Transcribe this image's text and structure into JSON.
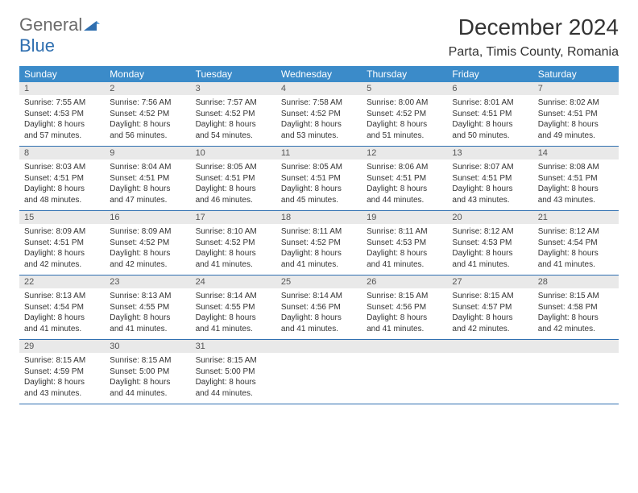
{
  "brand": {
    "part1": "General",
    "part2": "Blue"
  },
  "title": "December 2024",
  "location": "Parta, Timis County, Romania",
  "colors": {
    "header_bg": "#3b8bc9",
    "header_text": "#ffffff",
    "daynum_bg": "#e9e9e9",
    "row_border": "#2f6fb0",
    "logo_gray": "#6b6b6b",
    "logo_blue": "#2f6fb0",
    "text": "#333333",
    "page_bg": "#ffffff"
  },
  "typography": {
    "title_fontsize": 28,
    "location_fontsize": 16,
    "weekday_fontsize": 12,
    "daynum_fontsize": 11,
    "body_fontsize": 10
  },
  "weekdays": [
    "Sunday",
    "Monday",
    "Tuesday",
    "Wednesday",
    "Thursday",
    "Friday",
    "Saturday"
  ],
  "days": [
    {
      "n": "1",
      "sunrise": "7:55 AM",
      "sunset": "4:53 PM",
      "daylight": "8 hours and 57 minutes."
    },
    {
      "n": "2",
      "sunrise": "7:56 AM",
      "sunset": "4:52 PM",
      "daylight": "8 hours and 56 minutes."
    },
    {
      "n": "3",
      "sunrise": "7:57 AM",
      "sunset": "4:52 PM",
      "daylight": "8 hours and 54 minutes."
    },
    {
      "n": "4",
      "sunrise": "7:58 AM",
      "sunset": "4:52 PM",
      "daylight": "8 hours and 53 minutes."
    },
    {
      "n": "5",
      "sunrise": "8:00 AM",
      "sunset": "4:52 PM",
      "daylight": "8 hours and 51 minutes."
    },
    {
      "n": "6",
      "sunrise": "8:01 AM",
      "sunset": "4:51 PM",
      "daylight": "8 hours and 50 minutes."
    },
    {
      "n": "7",
      "sunrise": "8:02 AM",
      "sunset": "4:51 PM",
      "daylight": "8 hours and 49 minutes."
    },
    {
      "n": "8",
      "sunrise": "8:03 AM",
      "sunset": "4:51 PM",
      "daylight": "8 hours and 48 minutes."
    },
    {
      "n": "9",
      "sunrise": "8:04 AM",
      "sunset": "4:51 PM",
      "daylight": "8 hours and 47 minutes."
    },
    {
      "n": "10",
      "sunrise": "8:05 AM",
      "sunset": "4:51 PM",
      "daylight": "8 hours and 46 minutes."
    },
    {
      "n": "11",
      "sunrise": "8:05 AM",
      "sunset": "4:51 PM",
      "daylight": "8 hours and 45 minutes."
    },
    {
      "n": "12",
      "sunrise": "8:06 AM",
      "sunset": "4:51 PM",
      "daylight": "8 hours and 44 minutes."
    },
    {
      "n": "13",
      "sunrise": "8:07 AM",
      "sunset": "4:51 PM",
      "daylight": "8 hours and 43 minutes."
    },
    {
      "n": "14",
      "sunrise": "8:08 AM",
      "sunset": "4:51 PM",
      "daylight": "8 hours and 43 minutes."
    },
    {
      "n": "15",
      "sunrise": "8:09 AM",
      "sunset": "4:51 PM",
      "daylight": "8 hours and 42 minutes."
    },
    {
      "n": "16",
      "sunrise": "8:09 AM",
      "sunset": "4:52 PM",
      "daylight": "8 hours and 42 minutes."
    },
    {
      "n": "17",
      "sunrise": "8:10 AM",
      "sunset": "4:52 PM",
      "daylight": "8 hours and 41 minutes."
    },
    {
      "n": "18",
      "sunrise": "8:11 AM",
      "sunset": "4:52 PM",
      "daylight": "8 hours and 41 minutes."
    },
    {
      "n": "19",
      "sunrise": "8:11 AM",
      "sunset": "4:53 PM",
      "daylight": "8 hours and 41 minutes."
    },
    {
      "n": "20",
      "sunrise": "8:12 AM",
      "sunset": "4:53 PM",
      "daylight": "8 hours and 41 minutes."
    },
    {
      "n": "21",
      "sunrise": "8:12 AM",
      "sunset": "4:54 PM",
      "daylight": "8 hours and 41 minutes."
    },
    {
      "n": "22",
      "sunrise": "8:13 AM",
      "sunset": "4:54 PM",
      "daylight": "8 hours and 41 minutes."
    },
    {
      "n": "23",
      "sunrise": "8:13 AM",
      "sunset": "4:55 PM",
      "daylight": "8 hours and 41 minutes."
    },
    {
      "n": "24",
      "sunrise": "8:14 AM",
      "sunset": "4:55 PM",
      "daylight": "8 hours and 41 minutes."
    },
    {
      "n": "25",
      "sunrise": "8:14 AM",
      "sunset": "4:56 PM",
      "daylight": "8 hours and 41 minutes."
    },
    {
      "n": "26",
      "sunrise": "8:15 AM",
      "sunset": "4:56 PM",
      "daylight": "8 hours and 41 minutes."
    },
    {
      "n": "27",
      "sunrise": "8:15 AM",
      "sunset": "4:57 PM",
      "daylight": "8 hours and 42 minutes."
    },
    {
      "n": "28",
      "sunrise": "8:15 AM",
      "sunset": "4:58 PM",
      "daylight": "8 hours and 42 minutes."
    },
    {
      "n": "29",
      "sunrise": "8:15 AM",
      "sunset": "4:59 PM",
      "daylight": "8 hours and 43 minutes."
    },
    {
      "n": "30",
      "sunrise": "8:15 AM",
      "sunset": "5:00 PM",
      "daylight": "8 hours and 44 minutes."
    },
    {
      "n": "31",
      "sunrise": "8:15 AM",
      "sunset": "5:00 PM",
      "daylight": "8 hours and 44 minutes."
    }
  ],
  "labels": {
    "sunrise": "Sunrise:",
    "sunset": "Sunset:",
    "daylight": "Daylight:"
  },
  "layout": {
    "start_weekday": 0,
    "total_days": 31,
    "columns": 7
  }
}
